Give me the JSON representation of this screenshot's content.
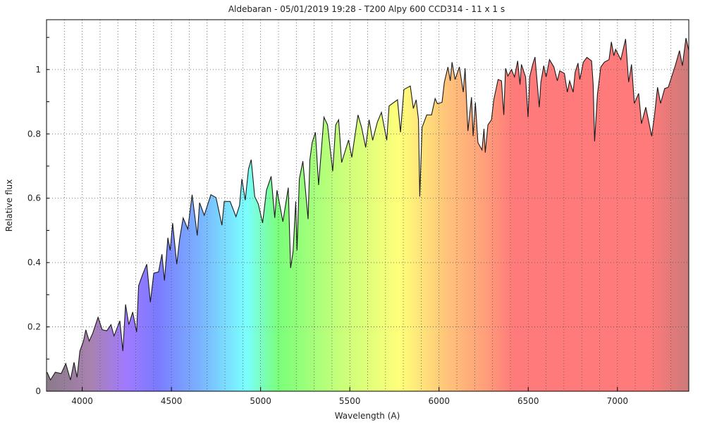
{
  "chart_data": {
    "type": "area",
    "title": "Aldebaran - 05/01/2019 19:28 - T200 Alpy 600 CCD314 - 11 x 1 s",
    "xlabel": "Wavelength (A)",
    "ylabel": "Relative flux",
    "xlim": [
      3800,
      7400
    ],
    "ylim": [
      0,
      1.155
    ],
    "xticks": [
      4000,
      4500,
      5000,
      5500,
      6000,
      6500,
      7000
    ],
    "xtick_labels": [
      "4000",
      "4500",
      "5000",
      "5500",
      "6000",
      "6500",
      "7000"
    ],
    "yticks": [
      0,
      0.2,
      0.4,
      0.6,
      0.8,
      1
    ],
    "ytick_labels": [
      "0",
      "0.2",
      "0.4",
      "0.6",
      "0.8",
      "1"
    ],
    "grid": true,
    "line_color": "#1a1a1a",
    "fill_gradient": [
      {
        "wl": 3800,
        "color": "#8a7a8a"
      },
      {
        "wl": 4050,
        "color": "#a882b0"
      },
      {
        "wl": 4250,
        "color": "#a07aff"
      },
      {
        "wl": 4420,
        "color": "#7a7aff"
      },
      {
        "wl": 4650,
        "color": "#7ab0ff"
      },
      {
        "wl": 4920,
        "color": "#7affff"
      },
      {
        "wl": 5100,
        "color": "#7aff7a"
      },
      {
        "wl": 5450,
        "color": "#c8ff7a"
      },
      {
        "wl": 5780,
        "color": "#ffff7a"
      },
      {
        "wl": 6050,
        "color": "#ffc27a"
      },
      {
        "wl": 6250,
        "color": "#ffa07a"
      },
      {
        "wl": 6420,
        "color": "#ff7a7a"
      },
      {
        "wl": 7180,
        "color": "#ff7a7a"
      },
      {
        "wl": 7400,
        "color": "#cc7a7a"
      }
    ],
    "x": [
      3803,
      3822,
      3849,
      3882,
      3908,
      3934,
      3954,
      3971,
      3987,
      4007,
      4020,
      4039,
      4059,
      4089,
      4112,
      4138,
      4161,
      4178,
      4211,
      4228,
      4243,
      4261,
      4283,
      4305,
      4316,
      4336,
      4362,
      4382,
      4401,
      4428,
      4447,
      4461,
      4480,
      4493,
      4507,
      4530,
      4546,
      4566,
      4592,
      4616,
      4645,
      4658,
      4684,
      4721,
      4750,
      4783,
      4796,
      4829,
      4862,
      4882,
      4895,
      4914,
      4932,
      4947,
      4967,
      4987,
      5011,
      5033,
      5059,
      5079,
      5092,
      5125,
      5155,
      5168,
      5182,
      5197,
      5204,
      5217,
      5237,
      5266,
      5276,
      5289,
      5307,
      5325,
      5355,
      5375,
      5404,
      5421,
      5437,
      5454,
      5493,
      5511,
      5546,
      5566,
      5589,
      5608,
      5628,
      5654,
      5677,
      5707,
      5720,
      5767,
      5784,
      5803,
      5839,
      5856,
      5872,
      5885,
      5892,
      5905,
      5931,
      5958,
      5978,
      5991,
      6017,
      6030,
      6050,
      6063,
      6073,
      6090,
      6114,
      6136,
      6146,
      6162,
      6182,
      6191,
      6204,
      6218,
      6241,
      6252,
      6259,
      6274,
      6294,
      6307,
      6331,
      6350,
      6363,
      6373,
      6386,
      6406,
      6423,
      6441,
      6454,
      6462,
      6485,
      6499,
      6508,
      6525,
      6538,
      6562,
      6571,
      6587,
      6600,
      6619,
      6644,
      6663,
      6677,
      6703,
      6719,
      6732,
      6752,
      6763,
      6779,
      6789,
      6809,
      6829,
      6855,
      6864,
      6872,
      6888,
      6907,
      6927,
      6953,
      6966,
      6980,
      6990,
      7019,
      7046,
      7063,
      7079,
      7095,
      7119,
      7135,
      7159,
      7179,
      7192,
      7208,
      7225,
      7242,
      7265,
      7285,
      7305,
      7324,
      7348,
      7364,
      7384,
      7400
    ],
    "y": [
      0.059,
      0.035,
      0.059,
      0.055,
      0.086,
      0.035,
      0.09,
      0.043,
      0.125,
      0.156,
      0.191,
      0.156,
      0.18,
      0.23,
      0.191,
      0.188,
      0.207,
      0.172,
      0.219,
      0.125,
      0.27,
      0.207,
      0.246,
      0.184,
      0.328,
      0.359,
      0.395,
      0.277,
      0.367,
      0.371,
      0.426,
      0.344,
      0.477,
      0.438,
      0.523,
      0.395,
      0.473,
      0.539,
      0.504,
      0.611,
      0.484,
      0.586,
      0.547,
      0.611,
      0.602,
      0.516,
      0.59,
      0.59,
      0.543,
      0.578,
      0.66,
      0.594,
      0.691,
      0.72,
      0.605,
      0.582,
      0.523,
      0.625,
      0.668,
      0.539,
      0.625,
      0.527,
      0.633,
      0.383,
      0.434,
      0.59,
      0.438,
      0.66,
      0.715,
      0.535,
      0.719,
      0.773,
      0.805,
      0.641,
      0.852,
      0.828,
      0.684,
      0.828,
      0.844,
      0.711,
      0.781,
      0.727,
      0.859,
      0.82,
      0.758,
      0.844,
      0.78,
      0.836,
      0.867,
      0.78,
      0.887,
      0.906,
      0.805,
      0.938,
      0.949,
      0.879,
      0.906,
      0.844,
      0.605,
      0.82,
      0.859,
      0.859,
      0.91,
      0.894,
      0.898,
      0.961,
      1.008,
      0.965,
      1.023,
      0.969,
      1.008,
      0.93,
      1.004,
      0.809,
      0.914,
      0.793,
      0.898,
      0.773,
      0.75,
      0.816,
      0.742,
      0.828,
      0.844,
      0.906,
      0.969,
      0.965,
      0.859,
      1.004,
      0.98,
      1.0,
      0.977,
      1.027,
      0.953,
      1.016,
      0.977,
      0.852,
      0.977,
      1.016,
      1.039,
      0.883,
      0.961,
      1.012,
      0.977,
      1.031,
      1.008,
      0.965,
      0.996,
      0.988,
      0.93,
      0.965,
      0.93,
      0.992,
      1.02,
      0.969,
      1.023,
      1.038,
      1.027,
      0.953,
      0.777,
      0.922,
      1.008,
      1.023,
      1.031,
      1.086,
      1.043,
      1.063,
      1.031,
      1.095,
      0.961,
      1.016,
      0.895,
      0.926,
      0.832,
      0.883,
      0.828,
      0.793,
      0.859,
      0.945,
      0.895,
      0.941,
      0.945,
      0.98,
      1.012,
      1.059,
      1.012,
      1.098,
      1.059
    ]
  }
}
